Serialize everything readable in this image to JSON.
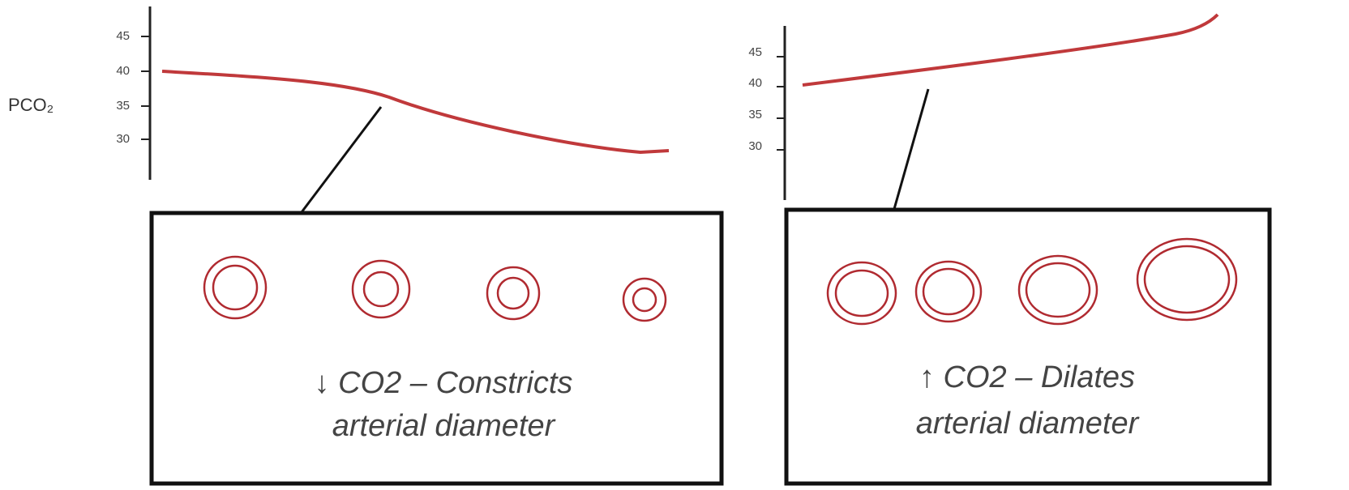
{
  "panels": [
    {
      "y_label": "PCO₂",
      "ticks": [
        "45",
        "40",
        "35",
        "30"
      ],
      "caption": [
        "↓ CO2 – Constricts",
        "arterial diameter"
      ]
    },
    {
      "ticks": [
        "45",
        "40",
        "35",
        "30"
      ],
      "caption": [
        "↑ CO2 – Dilates",
        "arterial diameter"
      ]
    }
  ]
}
